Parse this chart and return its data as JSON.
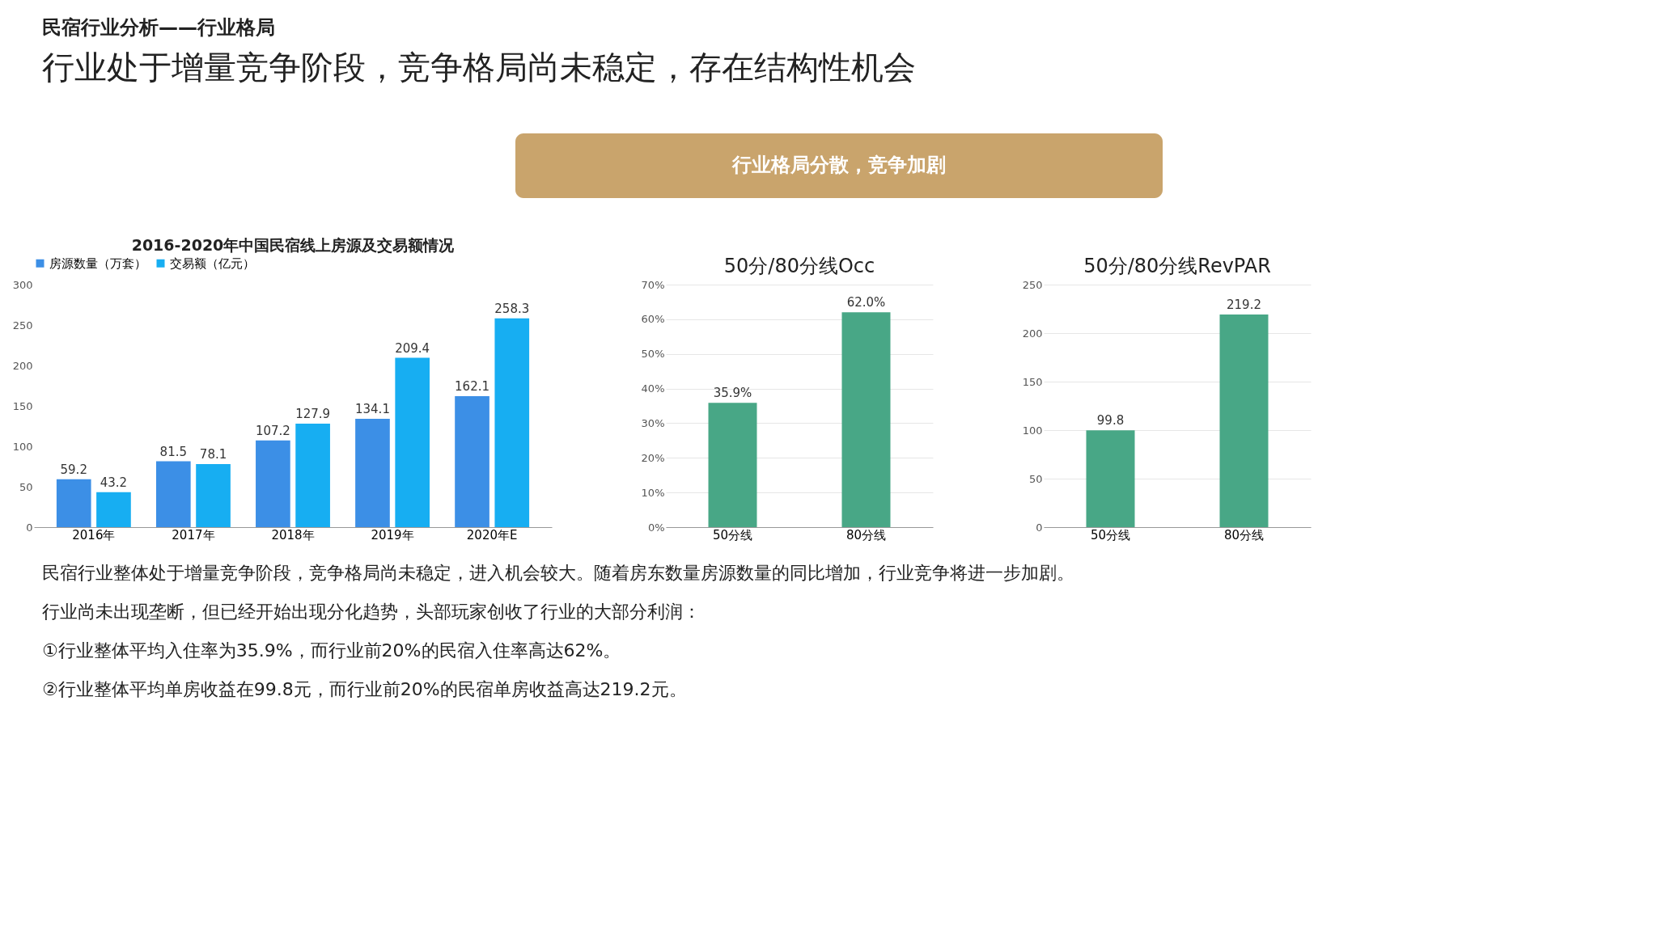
{
  "chart_data": [
    {
      "type": "other",
      "subtitle": "民宿行业分析——行业格局",
      "title": "行业处于增量竞争阶段，竞争格局尚未稳定，存在结构性机会",
      "annotations": [
        "行业格局分散，竞争加剧"
      ]
    },
    {
      "type": "bar",
      "title": "2016-2020年中国民宿线上房源及交易额情况",
      "categories": [
        "2016年",
        "2017年",
        "2018年",
        "2019年",
        "2020年E"
      ],
      "series": [
        {
          "name": "房源数量（万套）",
          "color": "#3c8fe6",
          "values": [
            59.2,
            81.5,
            107.2,
            134.1,
            162.1
          ]
        },
        {
          "name": "交易额（亿元）",
          "color": "#17aef2",
          "values": [
            43.2,
            78.1,
            127.9,
            209.4,
            258.3
          ]
        }
      ],
      "ylim": [
        0,
        300
      ],
      "yticks": [
        0,
        50,
        100,
        150,
        200,
        250,
        300
      ],
      "grid": false,
      "legend": "top",
      "data_labels": true
    },
    {
      "type": "bar",
      "title": "50分/80分线Occ",
      "categories": [
        "50分线",
        "80分线"
      ],
      "values": [
        35.9,
        62.0
      ],
      "value_labels": [
        "35.9%",
        "62.0%"
      ],
      "color": "#48a786",
      "ylim": [
        0,
        70
      ],
      "yticks": [
        {
          "value": 0,
          "label": "0%"
        },
        {
          "value": 10,
          "label": "10%"
        },
        {
          "value": 20,
          "label": "20%"
        },
        {
          "value": 30,
          "label": "30%"
        },
        {
          "value": 40,
          "label": "40%"
        },
        {
          "value": 50,
          "label": "50%"
        },
        {
          "value": 60,
          "label": "60%"
        },
        {
          "value": 70,
          "label": "70%"
        }
      ],
      "grid": "y"
    },
    {
      "type": "bar",
      "title": "50分/80分线RevPAR",
      "categories": [
        "50分线",
        "80分线"
      ],
      "values": [
        99.8,
        219.2
      ],
      "color": "#48a786",
      "ylim": [
        0,
        250
      ],
      "yticks": [
        0,
        50,
        100,
        150,
        200,
        250
      ],
      "grid": "y",
      "data_labels": true
    },
    {
      "type": "other",
      "annotations": [
        "民宿行业整体处于增量竞争阶段，竞争格局尚未稳定，进入机会较大。随着房东数量房源数量的同比增加，行业竞争将进一步加剧。",
        "行业尚未出现垄断，但已经开始出现分化趋势，头部玩家创收了行业的大部分利润：",
        "①行业整体平均入住率为35.9%，而行业前20%的民宿入住率高达62%。",
        "②行业整体平均单房收益在99.8元，而行业前20%的民宿单房收益高达219.2元。"
      ]
    }
  ]
}
